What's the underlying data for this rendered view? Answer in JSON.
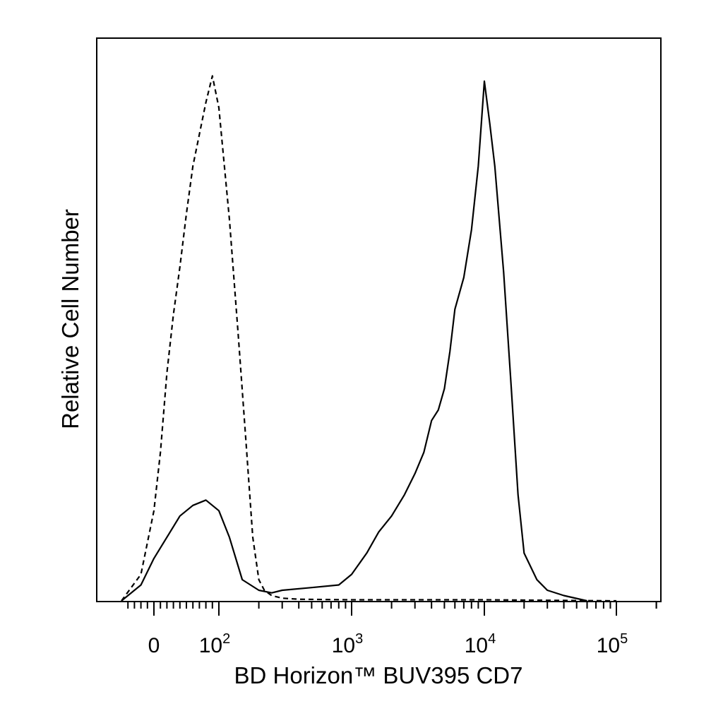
{
  "chart_data": {
    "type": "line",
    "title": "",
    "xlabel": "BD Horizon™ BUV395 CD7",
    "ylabel": "Relative Cell Number",
    "x_scale": "biexponential",
    "xlim": [
      -50,
      250000
    ],
    "ylim": [
      0,
      100
    ],
    "grid": false,
    "legend": "none",
    "x_ticks": [
      {
        "value": 0,
        "base": "0",
        "exp": ""
      },
      {
        "value": 100,
        "base": "10",
        "exp": "2"
      },
      {
        "value": 1000,
        "base": "10",
        "exp": "3"
      },
      {
        "value": 10000,
        "base": "10",
        "exp": "4"
      },
      {
        "value": 100000,
        "base": "10",
        "exp": "5"
      }
    ],
    "series": [
      {
        "style": "dashed",
        "x": [
          -50,
          -20,
          0,
          10,
          20,
          30,
          40,
          50,
          60,
          70,
          80,
          90,
          100,
          110,
          120,
          140,
          160,
          180,
          200,
          220,
          250,
          300,
          400,
          1000,
          10000,
          100000
        ],
        "y": [
          0,
          5,
          17,
          28,
          43,
          54,
          63,
          73,
          82,
          88,
          94,
          99,
          93,
          82,
          72,
          50,
          30,
          12,
          4,
          2,
          1,
          0.5,
          0.3,
          0.2,
          0.2,
          0
        ]
      },
      {
        "style": "solid",
        "x": [
          -50,
          -20,
          0,
          20,
          40,
          60,
          80,
          100,
          120,
          150,
          200,
          250,
          300,
          500,
          800,
          1000,
          1300,
          1600,
          2000,
          2500,
          3000,
          3500,
          4000,
          4500,
          5000,
          5500,
          6000,
          7000,
          8000,
          9000,
          10000,
          11000,
          12000,
          14000,
          16000,
          18000,
          20000,
          25000,
          30000,
          40000,
          60000
        ],
        "y": [
          0,
          3,
          8,
          12,
          16,
          18,
          19,
          17,
          12,
          4,
          2,
          1.5,
          2,
          2.5,
          3,
          5,
          9,
          13,
          16,
          20,
          24,
          28,
          34,
          36,
          40,
          47,
          55,
          61,
          70,
          82,
          98,
          90,
          82,
          62,
          40,
          20,
          9,
          4,
          2,
          1,
          0
        ]
      }
    ]
  }
}
